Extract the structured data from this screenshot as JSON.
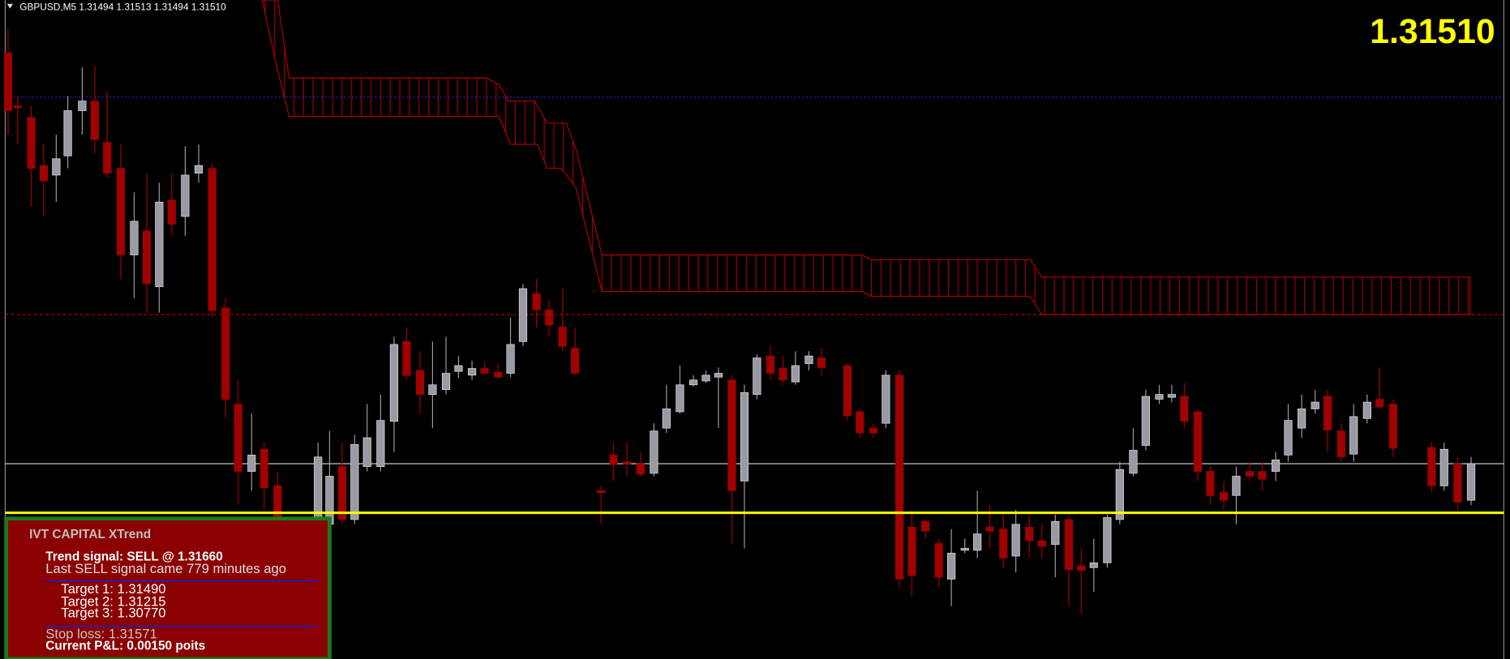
{
  "header": {
    "symbol_info": "GBPUSD,M5  1.31494 1.31513 1.31494 1.31510",
    "price": "1.31510"
  },
  "panel": {
    "title": "IVT CAPITAL XTrend",
    "signal": "Trend signal: SELL @ 1.31660",
    "signal_age": "Last SELL signal came 779 minutes ago",
    "targets": [
      "Target 1: 1.31490",
      "Target 2: 1.31215",
      "Target 3: 1.30770"
    ],
    "stop_loss": "Stop loss: 1.31571",
    "pnl": "Current P&L: 0.00150 poits"
  }
}
